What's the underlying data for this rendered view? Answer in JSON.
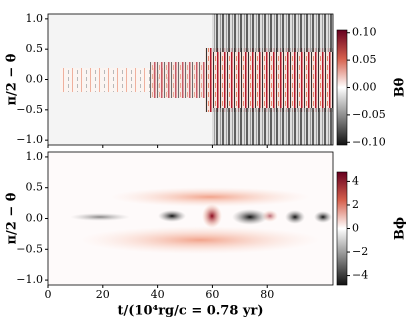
{
  "chart_data": [
    {
      "type": "heatmap",
      "ylabel": "π/2 − θ",
      "xlim": [
        0,
        104
      ],
      "xticks": [
        0,
        20,
        40,
        60,
        80
      ],
      "ylim": [
        -1.08,
        1.08
      ],
      "yticks": [
        {
          "value": -1.0,
          "label": "−1.0"
        },
        {
          "value": -0.5,
          "label": "−0.5"
        },
        {
          "value": 0.0,
          "label": "0.0"
        },
        {
          "value": 0.5,
          "label": "0.5"
        },
        {
          "value": 1.0,
          "label": "1.0"
        }
      ],
      "colorbar_label": "Bθ",
      "clim": [
        -0.105,
        0.105
      ],
      "cticks": [
        {
          "value": 0.1,
          "label": "0.10"
        },
        {
          "value": 0.05,
          "label": "0.05"
        },
        {
          "value": 0.0,
          "label": "0.00"
        },
        {
          "value": -0.05,
          "label": "−0.05"
        },
        {
          "value": -0.1,
          "label": "−0.10"
        }
      ]
    },
    {
      "type": "heatmap",
      "ylabel": "π/2 − θ",
      "xlabel": "t/(10⁴rg/c = 0.78 yr)",
      "xlim": [
        0,
        104
      ],
      "xticks": [
        0,
        20,
        40,
        60,
        80
      ],
      "ylim": [
        -1.08,
        1.08
      ],
      "yticks": [
        {
          "value": -1.0,
          "label": "−1.0"
        },
        {
          "value": -0.5,
          "label": "−0.5"
        },
        {
          "value": 0.0,
          "label": "0.0"
        },
        {
          "value": 0.5,
          "label": "0.5"
        },
        {
          "value": 1.0,
          "label": "1.0"
        }
      ],
      "colorbar_label": "Bϕ",
      "clim": [
        -4.8,
        4.8
      ],
      "cticks": [
        4,
        2,
        0,
        {
          "value": -2,
          "label": "−2"
        },
        {
          "value": -4,
          "label": "−4"
        }
      ]
    }
  ]
}
